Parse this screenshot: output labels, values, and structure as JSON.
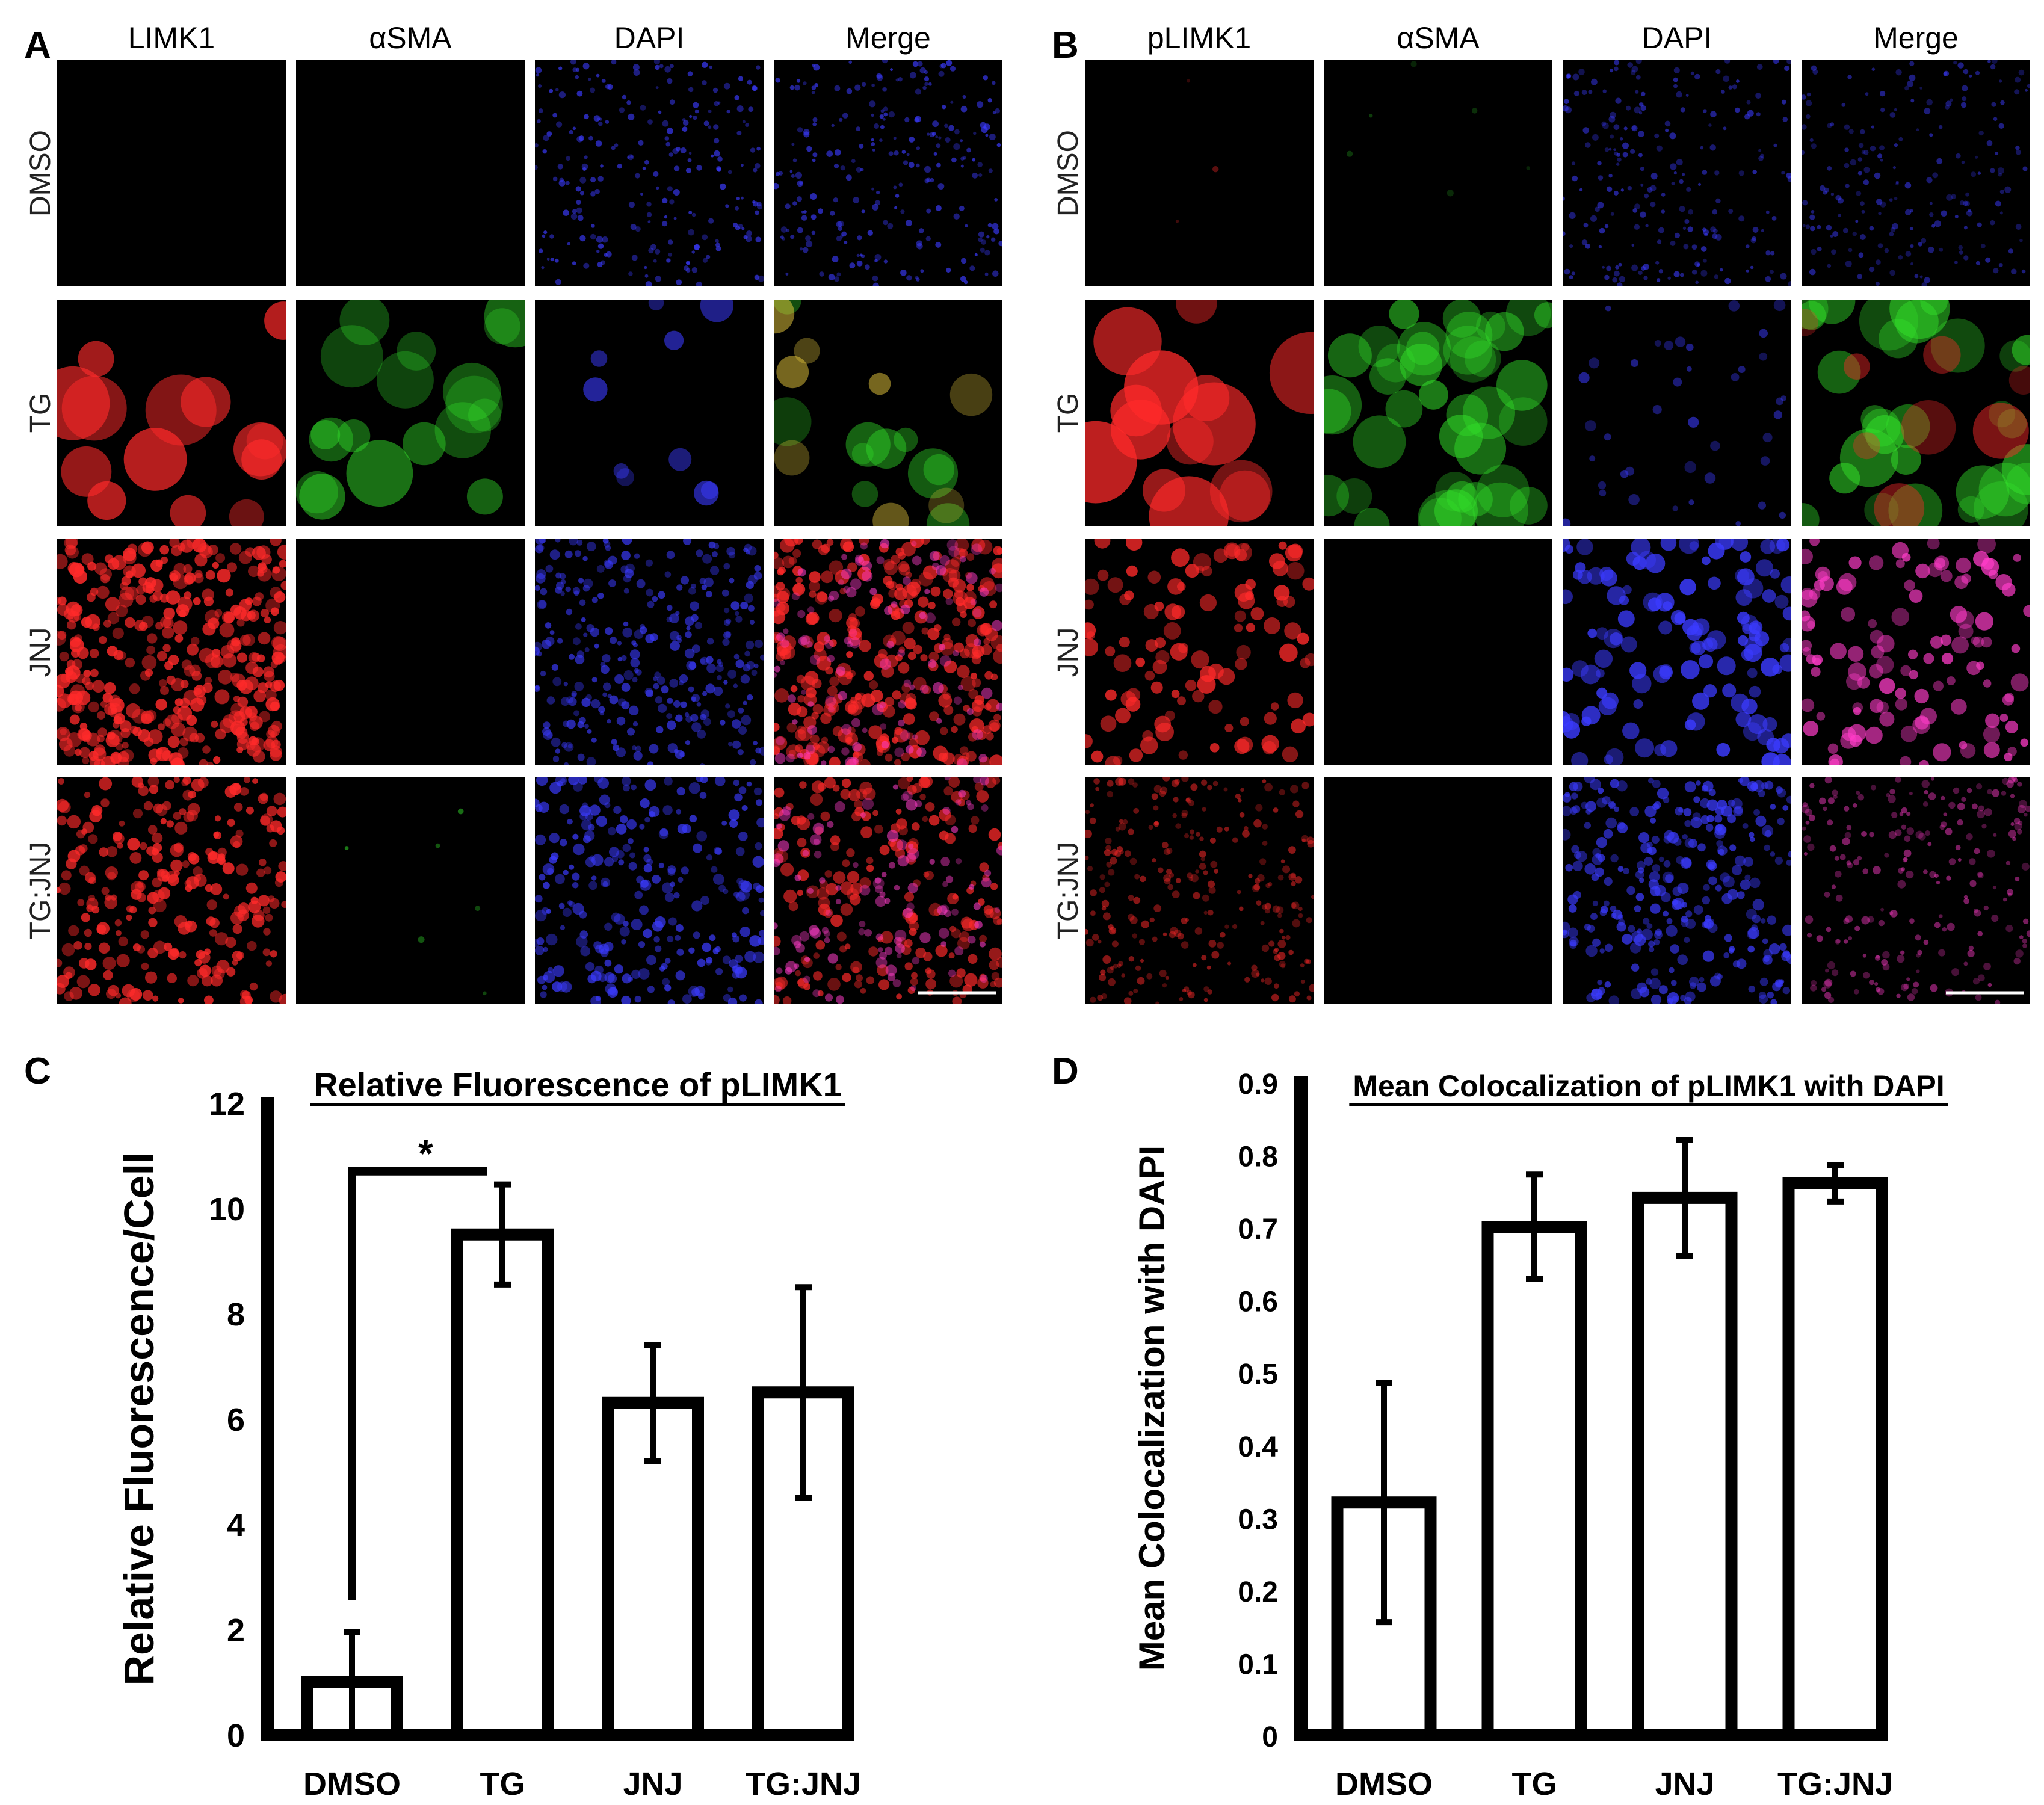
{
  "panels_top": [
    {
      "letter": "A",
      "columns": [
        {
          "label": "LIMK1",
          "color": "#e8222b"
        },
        {
          "label": "αSMA",
          "color": "#2fd12a"
        },
        {
          "label": "DAPI",
          "color": "#3a36e0"
        },
        {
          "label": "Merge",
          "color": "#222222"
        }
      ],
      "rows": [
        "DMSO",
        "TG",
        "JNJ",
        "TG:JNJ"
      ]
    },
    {
      "letter": "B",
      "columns": [
        {
          "label": "pLIMK1",
          "color": "#e8222b"
        },
        {
          "label": "αSMA",
          "color": "#5fe04a"
        },
        {
          "label": "DAPI",
          "color": "#4a52f0"
        },
        {
          "label": "Merge",
          "color": "#222222"
        }
      ],
      "rows": [
        "DMSO",
        "TG",
        "JNJ",
        "TG:JNJ"
      ]
    }
  ],
  "chart_data": [
    {
      "panel": "C",
      "type": "bar",
      "title": "Relative Fluorescence of pLIMK1",
      "ylabel": "Relative Fluorescence/Cell",
      "categories": [
        "DMSO",
        "TG",
        "JNJ",
        "TG:JNJ"
      ],
      "values": [
        1.0,
        9.5,
        6.3,
        6.5
      ],
      "errors": [
        0.95,
        0.95,
        1.1,
        2.0
      ],
      "ylim": [
        0,
        12
      ],
      "yticks": [
        "0",
        "2",
        "4",
        "6",
        "8",
        "10",
        "12"
      ],
      "significance": {
        "from": "DMSO",
        "to": "TG",
        "label": "*"
      }
    },
    {
      "panel": "D",
      "type": "bar",
      "title": "Mean Colocalization of pLIMK1 with DAPI",
      "ylabel": "Mean Colocalization with DAPI",
      "categories": [
        "DMSO",
        "TG",
        "JNJ",
        "TG:JNJ"
      ],
      "values": [
        0.32,
        0.7,
        0.74,
        0.76
      ],
      "errors": [
        0.165,
        0.072,
        0.08,
        0.025
      ],
      "ylim": [
        0,
        0.9
      ],
      "yticks": [
        "0",
        "0.1",
        "0.2",
        "0.3",
        "0.4",
        "0.5",
        "0.6",
        "0.7",
        "0.8",
        "0.9"
      ]
    }
  ]
}
